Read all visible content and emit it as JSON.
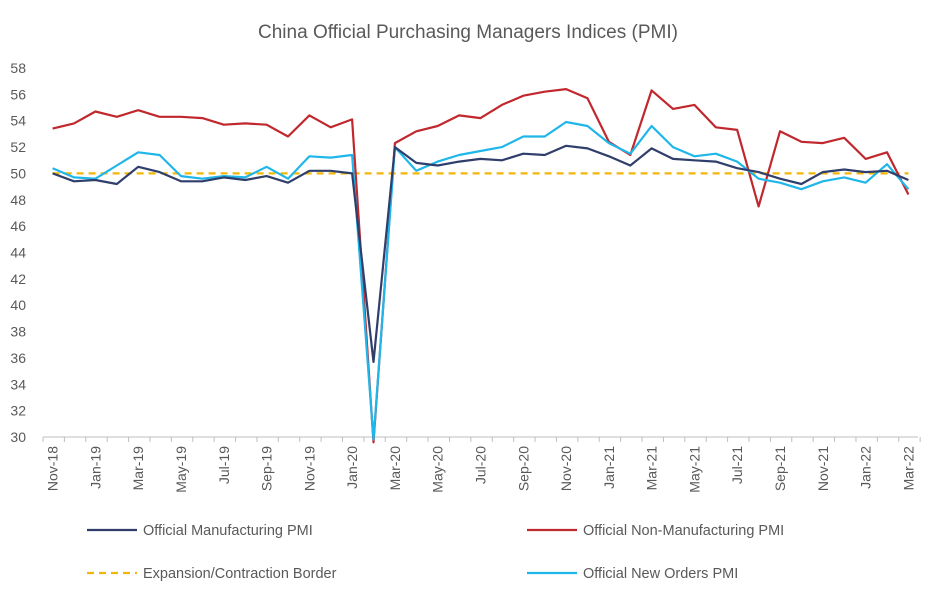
{
  "chart_data": {
    "type": "line",
    "title": "China Official Purchasing Managers Indices (PMI)",
    "xlabel": "",
    "ylabel": "",
    "ylim": [
      30,
      58
    ],
    "y_ticks": [
      "30",
      "32",
      "34",
      "36",
      "38",
      "40",
      "42",
      "44",
      "46",
      "48",
      "50",
      "52",
      "54",
      "56",
      "58"
    ],
    "x_tick_labels": [
      "Nov-18",
      "Jan-19",
      "Mar-19",
      "May-19",
      "Jul-19",
      "Sep-19",
      "Nov-19",
      "Jan-20",
      "Mar-20",
      "May-20",
      "Jul-20",
      "Sep-20",
      "Nov-20",
      "Jan-21",
      "Mar-21",
      "May-21",
      "Jul-21",
      "Sep-21",
      "Nov-21",
      "Jan-22",
      "Mar-22"
    ],
    "categories": [
      "Nov-18",
      "Dec-18",
      "Jan-19",
      "Feb-19",
      "Mar-19",
      "Apr-19",
      "May-19",
      "Jun-19",
      "Jul-19",
      "Aug-19",
      "Sep-19",
      "Oct-19",
      "Nov-19",
      "Dec-19",
      "Jan-20",
      "Feb-20",
      "Mar-20",
      "Apr-20",
      "May-20",
      "Jun-20",
      "Jul-20",
      "Aug-20",
      "Sep-20",
      "Oct-20",
      "Nov-20",
      "Dec-20",
      "Jan-21",
      "Feb-21",
      "Mar-21",
      "Apr-21",
      "May-21",
      "Jun-21",
      "Jul-21",
      "Aug-21",
      "Sep-21",
      "Oct-21",
      "Nov-21",
      "Dec-21",
      "Jan-22",
      "Feb-22",
      "Mar-22"
    ],
    "grid": false,
    "legend_position": "bottom",
    "series": [
      {
        "name": "Official Manufacturing PMI",
        "color": "#2f3e6b",
        "dash": "solid",
        "values": [
          50.0,
          49.4,
          49.5,
          49.2,
          50.5,
          50.1,
          49.4,
          49.4,
          49.7,
          49.5,
          49.8,
          49.3,
          50.2,
          50.2,
          50.0,
          35.7,
          52.0,
          50.8,
          50.6,
          50.9,
          51.1,
          51.0,
          51.5,
          51.4,
          52.1,
          51.9,
          51.3,
          50.6,
          51.9,
          51.1,
          51.0,
          50.9,
          50.4,
          50.1,
          49.6,
          49.2,
          50.1,
          50.3,
          50.1,
          50.2,
          49.5
        ]
      },
      {
        "name": "Official Non-Manufacturing PMI",
        "color": "#c0282d",
        "dash": "solid",
        "values": [
          53.4,
          53.8,
          54.7,
          54.3,
          54.8,
          54.3,
          54.3,
          54.2,
          53.7,
          53.8,
          53.7,
          52.8,
          54.4,
          53.5,
          54.1,
          29.6,
          52.3,
          53.2,
          53.6,
          54.4,
          54.2,
          55.2,
          55.9,
          56.2,
          56.4,
          55.7,
          52.4,
          51.4,
          56.3,
          54.9,
          55.2,
          53.5,
          53.3,
          47.5,
          53.2,
          52.4,
          52.3,
          52.7,
          51.1,
          51.6,
          48.4
        ]
      },
      {
        "name": "Official New Orders PMI",
        "color": "#1fb6ea",
        "dash": "solid",
        "values": [
          50.4,
          49.7,
          49.6,
          50.6,
          51.6,
          51.4,
          49.8,
          49.6,
          49.8,
          49.7,
          50.5,
          49.6,
          51.3,
          51.2,
          51.4,
          29.8,
          52.0,
          50.2,
          50.9,
          51.4,
          51.7,
          52.0,
          52.8,
          52.8,
          53.9,
          53.6,
          52.3,
          51.5,
          53.6,
          52.0,
          51.3,
          51.5,
          50.9,
          49.6,
          49.3,
          48.8,
          49.4,
          49.7,
          49.3,
          50.7,
          48.8
        ]
      },
      {
        "name": "Expansion/Contraction Border",
        "color": "#f2b705",
        "dash": "dashed",
        "values": [
          50,
          50,
          50,
          50,
          50,
          50,
          50,
          50,
          50,
          50,
          50,
          50,
          50,
          50,
          50,
          50,
          50,
          50,
          50,
          50,
          50,
          50,
          50,
          50,
          50,
          50,
          50,
          50,
          50,
          50,
          50,
          50,
          50,
          50,
          50,
          50,
          50,
          50,
          50,
          50,
          50
        ]
      }
    ]
  }
}
